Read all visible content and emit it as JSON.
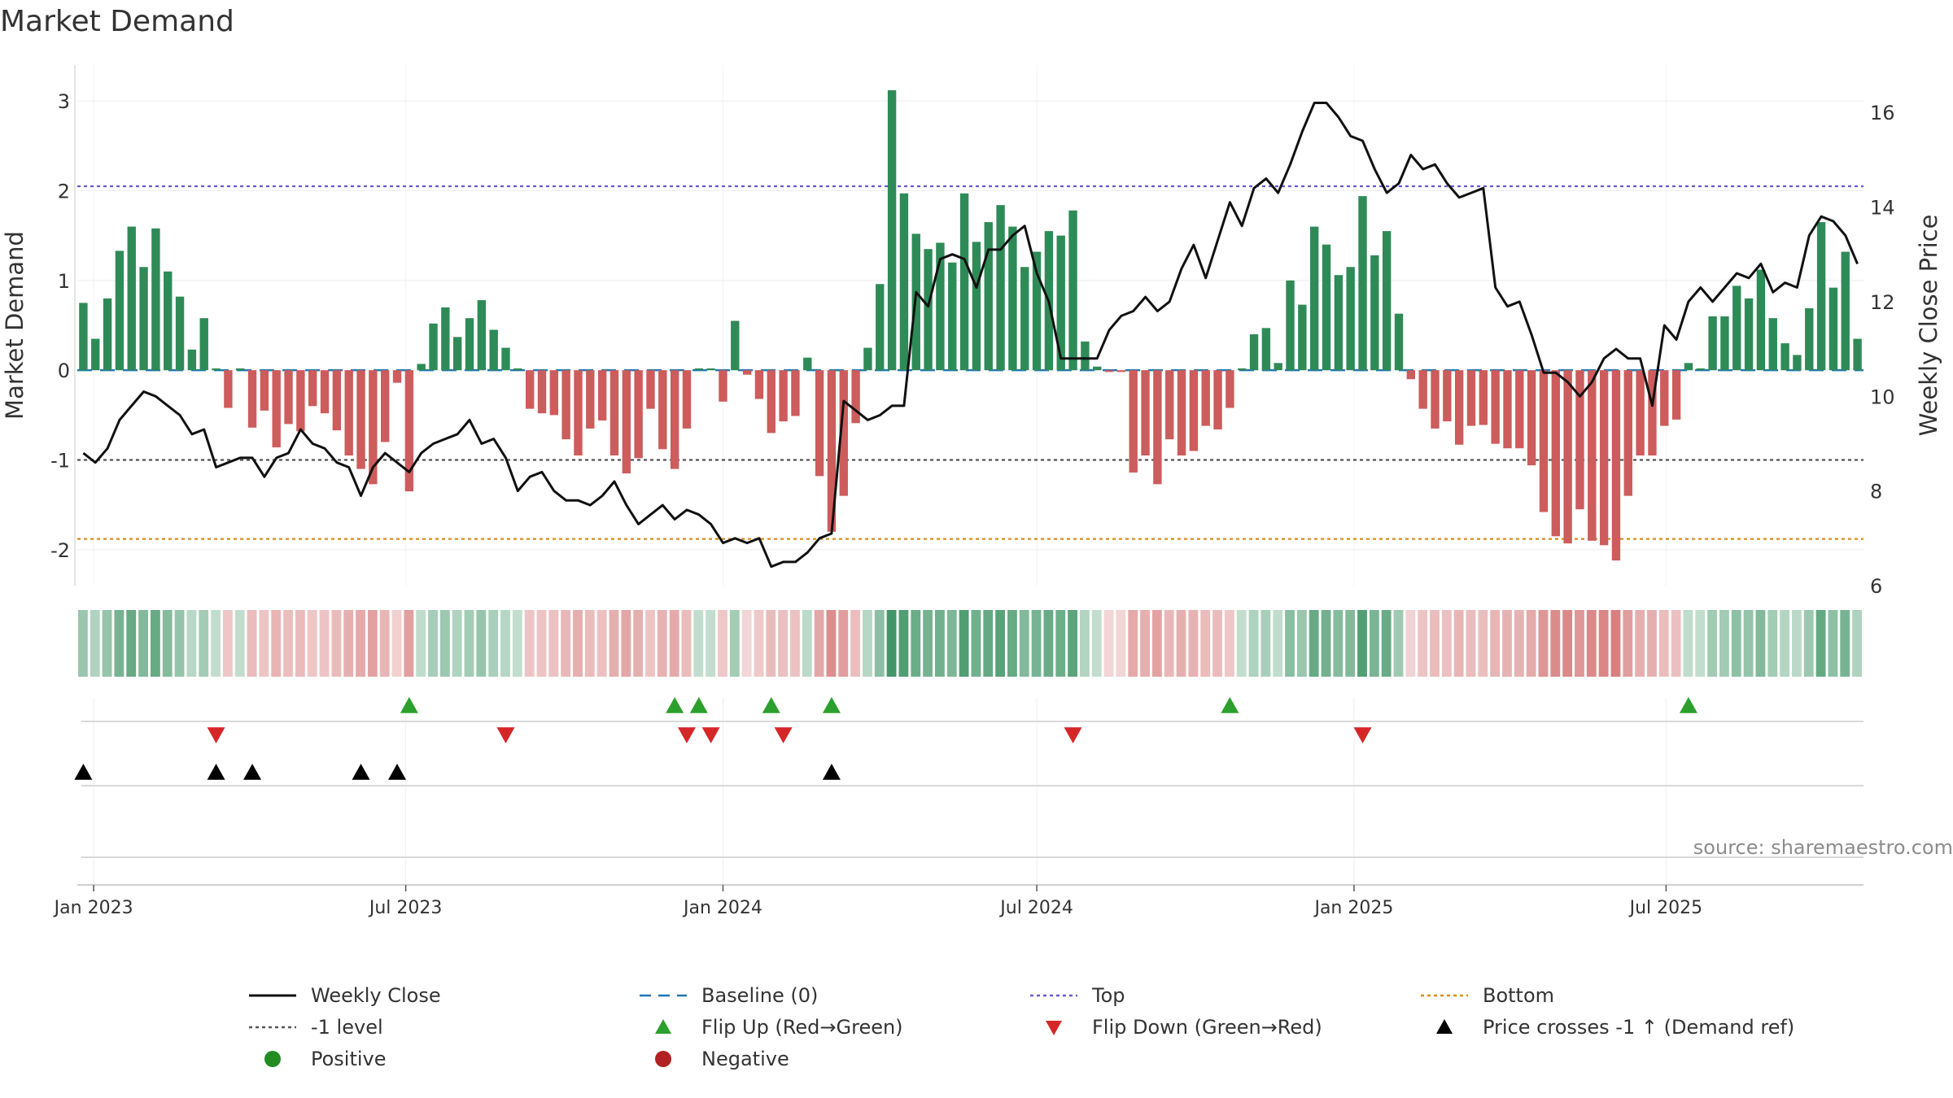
{
  "title": "Market Demand",
  "source_note": "source: sharemaestro.com",
  "colors": {
    "positive": "#2e8b57",
    "negative": "#cd5c5c",
    "close_line": "#111111",
    "baseline": "#1f77b4",
    "top": "#6a5acd",
    "bottom": "#d98c1a",
    "minus_one": "#555555",
    "flip_up": "#2ca02c",
    "flip_down": "#d62728",
    "cross_marker": "#000000",
    "positive_dot": "#228b22",
    "negative_dot": "#b22222"
  },
  "chart_data": {
    "type": "bar+line",
    "title": "Market Demand",
    "ylabel_left": "Market Demand",
    "ylabel_right": "Weekly Close Price",
    "ylim_left": [
      -2.4,
      3.4
    ],
    "ylim_right": [
      6,
      17
    ],
    "yticks_left": [
      3,
      2,
      1,
      0,
      -1,
      -2
    ],
    "yticks_right": [
      16,
      14,
      12,
      10,
      8,
      6
    ],
    "x_start": "2022-12-26",
    "week_step_days": 7,
    "xticks": [
      {
        "label": "Jan 2023",
        "date": "2023-01-01"
      },
      {
        "label": "Jul 2023",
        "date": "2023-07-01"
      },
      {
        "label": "Jan 2024",
        "date": "2024-01-01"
      },
      {
        "label": "Jul 2024",
        "date": "2024-07-01"
      },
      {
        "label": "Jan 2025",
        "date": "2025-01-01"
      },
      {
        "label": "Jul 2025",
        "date": "2025-07-01"
      }
    ],
    "reference_lines": {
      "baseline": 0,
      "top": 2.05,
      "bottom": -1.88,
      "minus_one": -1
    },
    "demand": [
      0.75,
      0.35,
      0.8,
      1.33,
      1.6,
      1.15,
      1.58,
      1.1,
      0.82,
      0.23,
      0.58,
      0.02,
      -0.42,
      0.02,
      -0.64,
      -0.45,
      -0.86,
      -0.6,
      -0.68,
      -0.4,
      -0.48,
      -0.67,
      -0.95,
      -1.1,
      -1.27,
      -0.8,
      -0.14,
      -1.35,
      0.07,
      0.52,
      0.7,
      0.37,
      0.58,
      0.78,
      0.45,
      0.25,
      0.02,
      -0.43,
      -0.48,
      -0.5,
      -0.77,
      -0.95,
      -0.65,
      -0.56,
      -0.95,
      -1.15,
      -0.98,
      -0.43,
      -0.88,
      -1.1,
      -0.65,
      0.02,
      0.02,
      -0.35,
      0.55,
      -0.05,
      -0.32,
      -0.7,
      -0.57,
      -0.51,
      0.14,
      -1.18,
      -1.8,
      -1.4,
      -0.59,
      0.25,
      0.96,
      3.12,
      1.97,
      1.52,
      1.35,
      1.42,
      1.2,
      1.97,
      1.43,
      1.65,
      1.84,
      1.6,
      1.15,
      1.32,
      1.55,
      1.5,
      1.78,
      0.32,
      0.04,
      -0.02,
      -0.02,
      -1.14,
      -0.95,
      -1.27,
      -0.77,
      -0.95,
      -0.9,
      -0.62,
      -0.66,
      -0.42,
      0.02,
      0.4,
      0.47,
      0.08,
      1.0,
      0.73,
      1.6,
      1.4,
      1.06,
      1.15,
      1.94,
      1.28,
      1.55,
      0.63,
      -0.1,
      -0.43,
      -0.65,
      -0.57,
      -0.83,
      -0.62,
      -0.61,
      -0.82,
      -0.87,
      -0.87,
      -1.06,
      -1.58,
      -1.85,
      -1.93,
      -1.55,
      -1.9,
      -1.95,
      -2.12,
      -1.4,
      -0.95,
      -0.95,
      -0.62,
      -0.55,
      0.08,
      0.02,
      0.6,
      0.6,
      0.94,
      0.8,
      1.12,
      0.58,
      0.3,
      0.17,
      0.69,
      1.65,
      0.92,
      1.32,
      0.35
    ],
    "close": [
      8.8,
      8.6,
      8.9,
      9.5,
      9.8,
      10.1,
      10.0,
      9.8,
      9.6,
      9.2,
      9.3,
      8.5,
      8.6,
      8.7,
      8.7,
      8.3,
      8.7,
      8.8,
      9.3,
      9.0,
      8.9,
      8.6,
      8.5,
      7.9,
      8.5,
      8.8,
      8.6,
      8.4,
      8.8,
      9.0,
      9.1,
      9.2,
      9.5,
      9.0,
      9.1,
      8.7,
      8.0,
      8.3,
      8.4,
      8.0,
      7.8,
      7.8,
      7.7,
      7.9,
      8.2,
      7.7,
      7.3,
      7.5,
      7.7,
      7.4,
      7.6,
      7.5,
      7.3,
      6.9,
      7.0,
      6.9,
      7.0,
      6.4,
      6.5,
      6.5,
      6.7,
      7.0,
      7.1,
      9.9,
      9.7,
      9.5,
      9.6,
      9.8,
      9.8,
      12.2,
      11.9,
      12.9,
      13.0,
      12.9,
      12.3,
      13.1,
      13.1,
      13.4,
      13.6,
      12.6,
      12.0,
      10.8,
      10.8,
      10.8,
      10.8,
      11.4,
      11.7,
      11.8,
      12.1,
      11.8,
      12.0,
      12.7,
      13.2,
      12.5,
      13.3,
      14.1,
      13.6,
      14.4,
      14.6,
      14.3,
      14.9,
      15.6,
      16.2,
      16.2,
      15.9,
      15.5,
      15.4,
      14.8,
      14.3,
      14.5,
      15.1,
      14.8,
      14.9,
      14.5,
      14.2,
      14.3,
      14.4,
      12.3,
      11.9,
      12.0,
      11.3,
      10.5,
      10.5,
      10.3,
      10.0,
      10.3,
      10.8,
      11.0,
      10.8,
      10.8,
      9.8,
      11.5,
      11.2,
      12.0,
      12.3,
      12.0,
      12.3,
      12.6,
      12.5,
      12.8,
      12.2,
      12.4,
      12.3,
      13.4,
      13.8,
      13.7,
      13.4,
      12.8
    ],
    "flip_up_weeks": [
      27,
      49,
      51,
      57,
      62,
      95,
      133
    ],
    "flip_down_weeks": [
      11,
      35,
      50,
      52,
      58,
      82,
      106
    ],
    "cross_up_weeks": [
      0,
      11,
      14,
      23,
      26,
      62
    ]
  },
  "legend": [
    {
      "label": "Weekly Close",
      "kind": "line-solid",
      "color": "#111111"
    },
    {
      "label": "Baseline (0)",
      "kind": "line-dashed",
      "color": "#1f77b4"
    },
    {
      "label": "Top",
      "kind": "line-dotted",
      "color": "#6a5acd"
    },
    {
      "label": "Bottom",
      "kind": "line-dotted",
      "color": "#d98c1a"
    },
    {
      "label": "-1 level",
      "kind": "line-dotted",
      "color": "#555555"
    },
    {
      "label": "Flip Up (Red→Green)",
      "kind": "triangle-up",
      "color": "#2ca02c"
    },
    {
      "label": "Flip Down (Green→Red)",
      "kind": "triangle-down",
      "color": "#d62728"
    },
    {
      "label": "Price crosses -1 ↑ (Demand ref)",
      "kind": "triangle-up",
      "color": "#000000"
    },
    {
      "label": "Positive",
      "kind": "dot",
      "color": "#228b22"
    },
    {
      "label": "Negative",
      "kind": "dot",
      "color": "#b22222"
    }
  ]
}
